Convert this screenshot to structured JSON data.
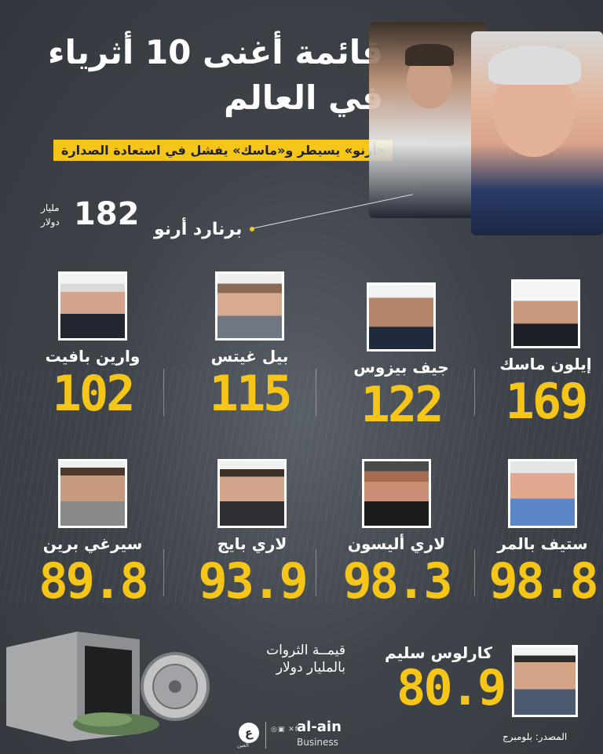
{
  "header": {
    "title_line1": "قائمة أغنى 10 أثرياء",
    "title_line2": "في العالم",
    "subtitle": "«أرنو» يسيطر و«ماسك» يفشل في استعادة الصدارة"
  },
  "top": {
    "name": "برنارد أرنو",
    "value": "182",
    "unit_line1": "مليار",
    "unit_line2": "دولار"
  },
  "people": [
    {
      "name": "إيلون ماسك",
      "value": "169"
    },
    {
      "name": "جيف بيزوس",
      "value": "122"
    },
    {
      "name": "بيل غيتس",
      "value": "115"
    },
    {
      "name": "وارين بافيت",
      "value": "102"
    },
    {
      "name": "ستيف بالمر",
      "value": "98.8"
    },
    {
      "name": "لاري أليسون",
      "value": "98.3"
    },
    {
      "name": "لاري بايج",
      "value": "93.9"
    },
    {
      "name": "سيرغي برين",
      "value": "89.8"
    },
    {
      "name": "كارلوس سليم",
      "value": "80.9"
    }
  ],
  "note_line1": "قيمــة الثروات",
  "note_line2": "بالمليار دولار",
  "source": "المصدر: بلومبرج",
  "brand": {
    "mark": "ع",
    "mark_sub": "العين",
    "name": "al-ain",
    "sub": "Business",
    "social": "◎▣ ✕f"
  },
  "colors": {
    "accent": "#f5c518",
    "background": "#3f444b"
  }
}
